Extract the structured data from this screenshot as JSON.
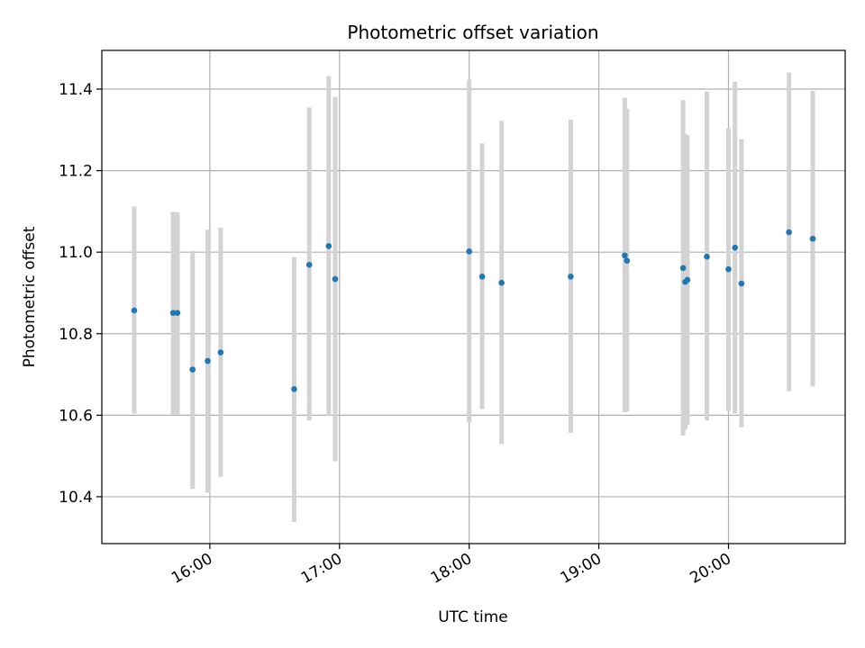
{
  "chart_data": {
    "type": "scatter",
    "title": "Photometric offset variation",
    "xlabel": "UTC time",
    "ylabel": "Photometric offset",
    "xlim": [
      "15:10",
      "20:54"
    ],
    "ylim": [
      10.285,
      11.495
    ],
    "grid": true,
    "xticks": [
      "16:00",
      "17:00",
      "18:00",
      "19:00",
      "20:00"
    ],
    "yticks": [
      "10.4",
      "10.6",
      "10.8",
      "11.0",
      "11.2",
      "11.4"
    ],
    "colors": {
      "marker": "#1f77b4",
      "errorbar": "#d3d3d3",
      "grid": "#b0b0b0"
    },
    "points": [
      {
        "x": "15:25",
        "y": 10.857,
        "ylow": 10.604,
        "yhigh": 11.112
      },
      {
        "x": "15:43",
        "y": 10.851,
        "ylow": 10.601,
        "yhigh": 11.099
      },
      {
        "x": "15:45",
        "y": 10.851,
        "ylow": 10.602,
        "yhigh": 11.098
      },
      {
        "x": "15:52",
        "y": 10.712,
        "ylow": 10.419,
        "yhigh": 11.003
      },
      {
        "x": "15:59",
        "y": 10.733,
        "ylow": 10.41,
        "yhigh": 11.055
      },
      {
        "x": "16:05",
        "y": 10.754,
        "ylow": 10.449,
        "yhigh": 11.06
      },
      {
        "x": "16:39",
        "y": 10.664,
        "ylow": 10.338,
        "yhigh": 10.988
      },
      {
        "x": "16:46",
        "y": 10.969,
        "ylow": 10.587,
        "yhigh": 11.355
      },
      {
        "x": "16:55",
        "y": 11.015,
        "ylow": 10.598,
        "yhigh": 11.432
      },
      {
        "x": "16:58",
        "y": 10.934,
        "ylow": 10.487,
        "yhigh": 11.381
      },
      {
        "x": "18:00",
        "y": 11.002,
        "ylow": 10.582,
        "yhigh": 11.423
      },
      {
        "x": "18:06",
        "y": 10.94,
        "ylow": 10.615,
        "yhigh": 11.267
      },
      {
        "x": "18:15",
        "y": 10.925,
        "ylow": 10.529,
        "yhigh": 11.322
      },
      {
        "x": "18:47",
        "y": 10.94,
        "ylow": 10.557,
        "yhigh": 11.325
      },
      {
        "x": "19:12",
        "y": 10.992,
        "ylow": 10.607,
        "yhigh": 11.379
      },
      {
        "x": "19:13",
        "y": 10.979,
        "ylow": 10.609,
        "yhigh": 11.352
      },
      {
        "x": "19:39",
        "y": 10.961,
        "ylow": 10.55,
        "yhigh": 11.373
      },
      {
        "x": "19:40",
        "y": 10.927,
        "ylow": 10.565,
        "yhigh": 11.29
      },
      {
        "x": "19:41",
        "y": 10.932,
        "ylow": 10.577,
        "yhigh": 11.287
      },
      {
        "x": "19:50",
        "y": 10.989,
        "ylow": 10.587,
        "yhigh": 11.394
      },
      {
        "x": "20:00",
        "y": 10.958,
        "ylow": 10.61,
        "yhigh": 11.304
      },
      {
        "x": "20:03",
        "y": 11.011,
        "ylow": 10.604,
        "yhigh": 11.418
      },
      {
        "x": "20:06",
        "y": 10.923,
        "ylow": 10.57,
        "yhigh": 11.277
      },
      {
        "x": "20:28",
        "y": 11.049,
        "ylow": 10.659,
        "yhigh": 11.441
      },
      {
        "x": "20:39",
        "y": 11.033,
        "ylow": 10.67,
        "yhigh": 11.396
      }
    ]
  }
}
